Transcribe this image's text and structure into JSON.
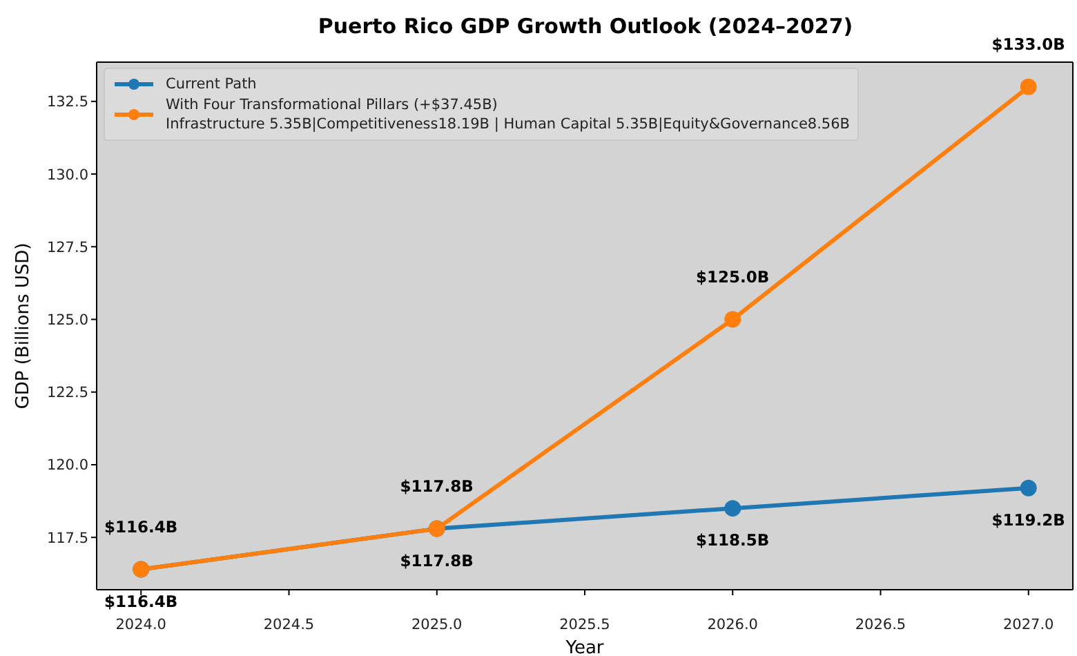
{
  "chart_data": {
    "type": "line",
    "title": "Puerto Rico GDP Growth Outlook (2024–2027)",
    "xlabel": "Year",
    "ylabel": "GDP (Billions USD)",
    "x": [
      2024,
      2025,
      2026,
      2027
    ],
    "series": [
      {
        "name": "Current Path",
        "color": "#1f77b4",
        "values": [
          116.4,
          117.8,
          118.5,
          119.2
        ],
        "value_labels": [
          "$116.4B",
          "$117.8B",
          "$118.5B",
          "$119.2B"
        ]
      },
      {
        "name": "With Four Transformational Pillars (+$37.45B)\nInfrastructure 5.35B|Competitiveness18.19B | Human Capital 5.35B|Equity&Governance8.56B",
        "color": "#ff7f0e",
        "values": [
          116.4,
          117.8,
          125.0,
          133.0
        ],
        "value_labels": [
          "$116.4B",
          "$117.8B",
          "$125.0B",
          "$133.0B"
        ]
      }
    ],
    "xlim": [
      2023.85,
      2027.15
    ],
    "xticks": [
      {
        "value": 2024,
        "label": "2024.0"
      },
      {
        "value": 2024.5,
        "label": "2024.5"
      },
      {
        "value": 2025,
        "label": "2025.0"
      },
      {
        "value": 2025.5,
        "label": "2025.5"
      },
      {
        "value": 2026,
        "label": "2026.0"
      },
      {
        "value": 2026.5,
        "label": "2026.5"
      },
      {
        "value": 2027,
        "label": "2027.0"
      }
    ],
    "ylim": [
      115.7,
      133.85
    ],
    "yticks": [
      {
        "value": 117.5,
        "label": "117.5"
      },
      {
        "value": 120,
        "label": "120.0"
      },
      {
        "value": 122.5,
        "label": "122.5"
      },
      {
        "value": 125,
        "label": "125.0"
      },
      {
        "value": 127.5,
        "label": "127.5"
      },
      {
        "value": 130,
        "label": "130.0"
      },
      {
        "value": 132.5,
        "label": "132.5"
      }
    ],
    "grid": false,
    "legend": "top left",
    "marker": "circle",
    "line_style": "solid"
  }
}
